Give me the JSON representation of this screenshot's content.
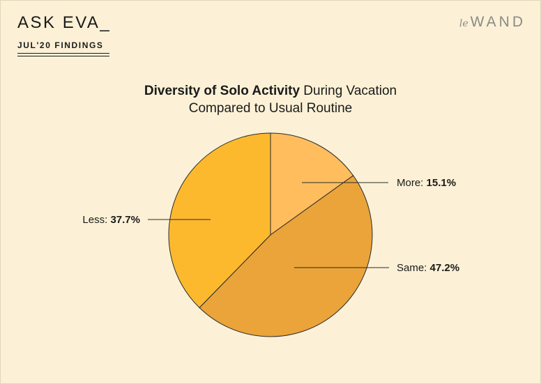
{
  "header": {
    "brand": "ASK EVA_",
    "kicker": "JUL'20 FINDINGS",
    "logo_script": "le",
    "logo_word": "WAND"
  },
  "chart_data": {
    "type": "pie",
    "title_bold": "Diversity of Solo Activity",
    "title_rest": " During Vacation",
    "title_line2": "Compared to Usual Routine",
    "slices": [
      {
        "label": "More:",
        "value": 15.1,
        "value_text": "15.1%",
        "color": "#ffbd5e"
      },
      {
        "label": "Same:",
        "value": 47.2,
        "value_text": "47.2%",
        "color": "#eba43a"
      },
      {
        "label": "Less:",
        "value": 37.7,
        "value_text": "37.7%",
        "color": "#fdb92e"
      }
    ],
    "start": "12 o'clock",
    "direction": "clockwise"
  }
}
